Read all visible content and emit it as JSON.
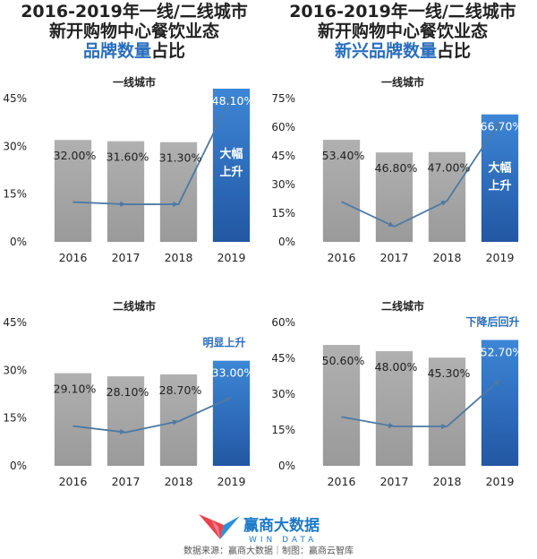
{
  "headline_left": {
    "line1": "2016-2019年一线/二线城市",
    "line2": "新开购物中心餐饮业态",
    "line3_em": "品牌数量",
    "line3_rest": "占比"
  },
  "headline_right": {
    "line1": "2016-2019年一线/二线城市",
    "line2": "新开购物中心餐饮业态",
    "line3_em": "新兴品牌数量",
    "line3_rest": "占比"
  },
  "colors": {
    "bar_gray": "#a6a6a6",
    "bar_blue": "#2c6fbf",
    "trend_line": "#4e79a4",
    "accent_text": "#2a6ebd"
  },
  "chart_data": [
    {
      "type": "bar",
      "title": "一线城市",
      "categories": [
        "2016",
        "2017",
        "2018",
        "2019"
      ],
      "values": [
        32.0,
        31.6,
        31.3,
        48.1
      ],
      "value_labels": [
        "32.00%",
        "31.60%",
        "31.30%",
        "48.10%"
      ],
      "ylim": [
        0,
        45
      ],
      "yticks": [
        "0%",
        "15%",
        "30%",
        "45%"
      ],
      "yticks_values": [
        0,
        15,
        30,
        45
      ],
      "highlight_index": 3,
      "annotation": "大幅\n上升",
      "annotation_style": "inside-bar",
      "trend_line": [
        12.5,
        11.8,
        11.8,
        45.5
      ],
      "grid": false,
      "legend": "none"
    },
    {
      "type": "bar",
      "title": "一线城市",
      "categories": [
        "2016",
        "2017",
        "2018",
        "2019"
      ],
      "values": [
        53.4,
        46.8,
        47.0,
        66.7
      ],
      "value_labels": [
        "53.40%",
        "46.80%",
        "47.00%",
        "66.70%"
      ],
      "ylim": [
        0,
        75
      ],
      "yticks": [
        "0%",
        "15%",
        "30%",
        "45%",
        "60%",
        "75%"
      ],
      "yticks_values": [
        0,
        15,
        30,
        45,
        60,
        75
      ],
      "highlight_index": 3,
      "annotation": "大幅\n上升",
      "annotation_style": "inside-bar",
      "trend_line": [
        21,
        8,
        21.5,
        63
      ],
      "grid": false,
      "legend": "none"
    },
    {
      "type": "bar",
      "title": "二线城市",
      "categories": [
        "2016",
        "2017",
        "2018",
        "2019"
      ],
      "values": [
        29.1,
        28.1,
        28.7,
        33.0
      ],
      "value_labels": [
        "29.10%",
        "28.10%",
        "28.70%",
        "33.00%"
      ],
      "ylim": [
        0,
        45
      ],
      "yticks": [
        "0%",
        "15%",
        "30%",
        "45%"
      ],
      "yticks_values": [
        0,
        15,
        30,
        45
      ],
      "highlight_index": 3,
      "annotation": "明显上升",
      "annotation_style": "above-bar",
      "trend_line": [
        12.5,
        10.5,
        14,
        21.5
      ],
      "grid": false,
      "legend": "none"
    },
    {
      "type": "bar",
      "title": "二线城市",
      "categories": [
        "2016",
        "2017",
        "2018",
        "2019"
      ],
      "values": [
        50.6,
        48.0,
        45.3,
        52.7
      ],
      "value_labels": [
        "50.60%",
        "48.00%",
        "45.30%",
        "52.70%"
      ],
      "ylim": [
        0,
        60
      ],
      "yticks": [
        "0%",
        "15%",
        "30%",
        "45%",
        "60%"
      ],
      "yticks_values": [
        0,
        15,
        30,
        45,
        60
      ],
      "highlight_index": 3,
      "annotation": "下降后回升",
      "annotation_style": "above-bar",
      "trend_line": [
        20.5,
        16.5,
        16.5,
        36
      ],
      "grid": false,
      "legend": "none"
    }
  ],
  "logo": {
    "cn": "赢商大数据",
    "en": "WIN DATA"
  },
  "source": "数据来源：赢商大数据｜制图：赢商云智库"
}
